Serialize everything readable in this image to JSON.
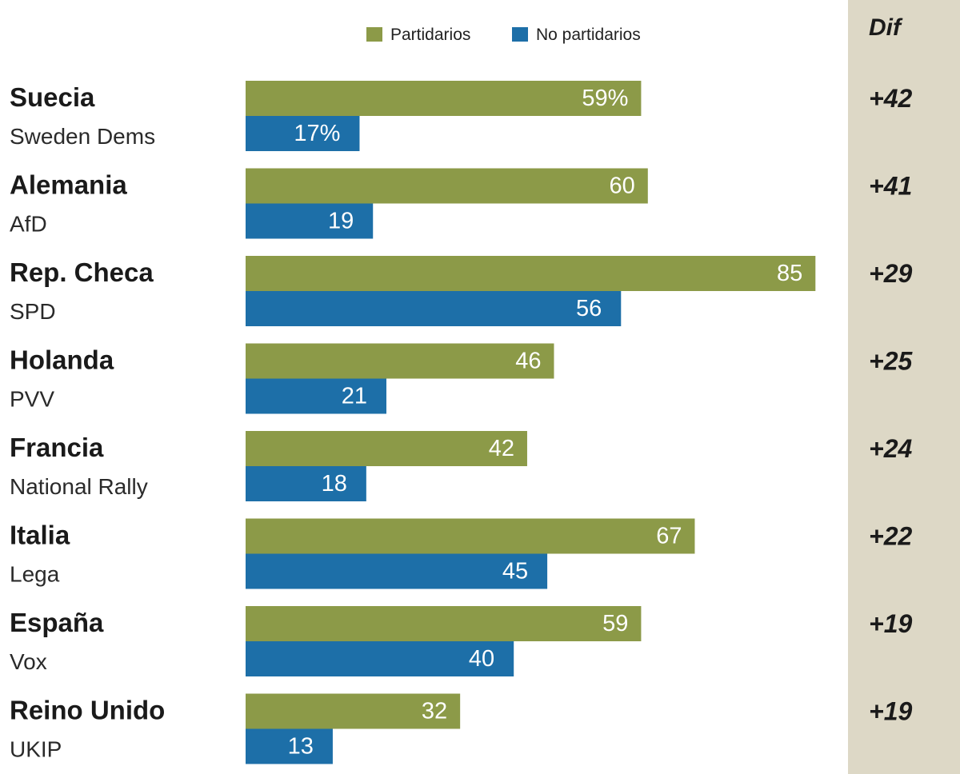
{
  "chart_data": {
    "type": "bar",
    "orientation": "horizontal",
    "legend": {
      "position": "top",
      "entries": [
        "Partidarios",
        "No partidarios"
      ]
    },
    "colors": {
      "Partidarios": "#8c9a48",
      "No partidarios": "#1d6fa8",
      "dif_panel": "#ddd8c6"
    },
    "xlim": [
      0,
      100
    ],
    "dif_header": "Dif",
    "groups": [
      {
        "country": "Suecia",
        "party": "Sweden Dems",
        "partidarios": 59,
        "no_partidarios": 17,
        "partidarios_label": "59%",
        "no_partidarios_label": "17%",
        "dif": "+42"
      },
      {
        "country": "Alemania",
        "party": "AfD",
        "partidarios": 60,
        "no_partidarios": 19,
        "partidarios_label": "60",
        "no_partidarios_label": "19",
        "dif": "+41"
      },
      {
        "country": "Rep. Checa",
        "party": "SPD",
        "partidarios": 85,
        "no_partidarios": 56,
        "partidarios_label": "85",
        "no_partidarios_label": "56",
        "dif": "+29"
      },
      {
        "country": "Holanda",
        "party": "PVV",
        "partidarios": 46,
        "no_partidarios": 21,
        "partidarios_label": "46",
        "no_partidarios_label": "21",
        "dif": "+25"
      },
      {
        "country": "Francia",
        "party": "National Rally",
        "partidarios": 42,
        "no_partidarios": 18,
        "partidarios_label": "42",
        "no_partidarios_label": "18",
        "dif": "+24"
      },
      {
        "country": "Italia",
        "party": "Lega",
        "partidarios": 67,
        "no_partidarios": 45,
        "partidarios_label": "67",
        "no_partidarios_label": "45",
        "dif": "+22"
      },
      {
        "country": "España",
        "party": "Vox",
        "partidarios": 59,
        "no_partidarios": 40,
        "partidarios_label": "59",
        "no_partidarios_label": "40",
        "dif": "+19"
      },
      {
        "country": "Reino Unido",
        "party": "UKIP",
        "partidarios": 32,
        "no_partidarios": 13,
        "partidarios_label": "32",
        "no_partidarios_label": "13",
        "dif": "+19"
      }
    ]
  }
}
